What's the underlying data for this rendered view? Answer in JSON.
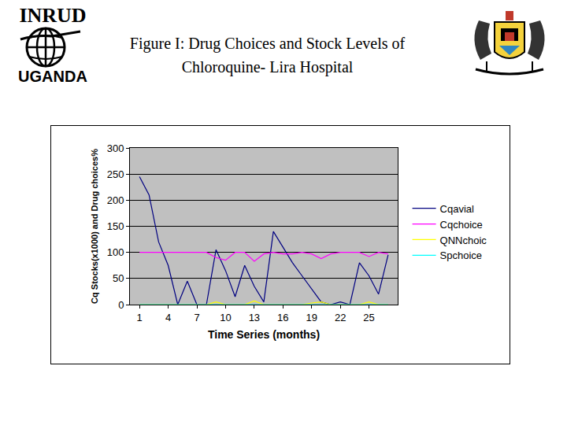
{
  "header": {
    "logo_top": "INRUD",
    "logo_bottom": "UGANDA"
  },
  "chart_data": {
    "type": "line",
    "title": "Figure I: Drug Choices and Stock Levels of Chloroquine- Lira Hospital",
    "x_label": "Time Series (months)",
    "y_label": "Cq Stocks(x1000) and Drug choices%",
    "x": [
      1,
      2,
      3,
      4,
      5,
      6,
      7,
      8,
      9,
      10,
      11,
      12,
      13,
      14,
      15,
      16,
      17,
      18,
      19,
      20,
      21,
      22,
      23,
      24,
      25,
      26,
      27
    ],
    "xlim": [
      0,
      28
    ],
    "xticks": [
      1,
      4,
      7,
      10,
      13,
      16,
      19,
      22,
      25
    ],
    "ylim": [
      0,
      300
    ],
    "yticks": [
      0,
      50,
      100,
      150,
      200,
      250,
      300
    ],
    "grid": true,
    "legend": "right",
    "series": [
      {
        "name": "Cqavial",
        "color": "#000080",
        "values": [
          245,
          210,
          120,
          75,
          0,
          45,
          0,
          0,
          105,
          65,
          15,
          75,
          35,
          5,
          140,
          110,
          80,
          55,
          30,
          5,
          0,
          5,
          0,
          80,
          55,
          20,
          95
        ]
      },
      {
        "name": "Cqchoice",
        "color": "#ff00ff",
        "values": [
          100,
          100,
          100,
          100,
          100,
          100,
          100,
          100,
          90,
          85,
          100,
          100,
          83,
          97,
          100,
          97,
          97,
          100,
          97,
          88,
          97,
          100,
          100,
          100,
          92,
          100,
          97
        ]
      },
      {
        "name": "QNNchoic",
        "color": "#ffff00",
        "values": [
          0,
          0,
          0,
          0,
          0,
          0,
          0,
          0,
          5,
          0,
          0,
          0,
          7,
          0,
          0,
          0,
          0,
          0,
          3,
          5,
          0,
          0,
          0,
          0,
          5,
          0,
          0
        ]
      },
      {
        "name": "Spchoice",
        "color": "#00ffff",
        "values": [
          0,
          0,
          0,
          0,
          0,
          0,
          0,
          0,
          0,
          0,
          0,
          0,
          0,
          0,
          0,
          0,
          0,
          0,
          0,
          0,
          0,
          0,
          0,
          0,
          0,
          0,
          0
        ]
      }
    ]
  }
}
